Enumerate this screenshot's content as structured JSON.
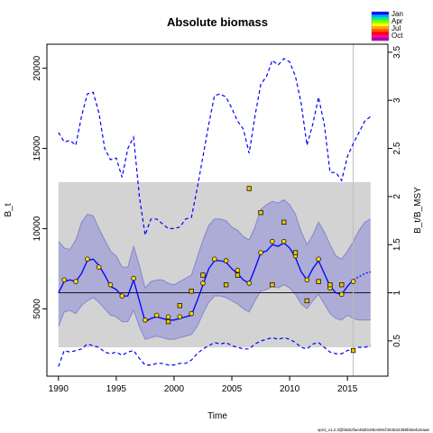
{
  "chart_data": {
    "type": "line",
    "title": "Absolute biomass",
    "xlabel": "Time",
    "ylabel": "B_t",
    "ylabel_right": "B_t/B_MSY",
    "xlim": [
      1989.0,
      2018.5
    ],
    "ylim": [
      800,
      21500
    ],
    "xticks": [
      1990,
      1995,
      2000,
      2005,
      2010,
      2015
    ],
    "yticks": [
      5000,
      10000,
      15000,
      20000
    ],
    "yticks_right": [
      0.5,
      1,
      1.5,
      2,
      2.5,
      3,
      3.5
    ],
    "bmsy": 6000,
    "reference_band": [
      2600,
      12900
    ],
    "band_x": [
      1990,
      2017
    ],
    "vline_x": 2015.5,
    "legend_seasons": [
      "Jan",
      "Apr",
      "Jul",
      "Oct"
    ],
    "legend_colors": [
      "#0000ff",
      "#00aaff",
      "#00ff66",
      "#88ff00",
      "#ffff00",
      "#ffaa00",
      "#ff5500",
      "#ff0000",
      "#ff00aa",
      "#aa00aa"
    ],
    "footer": "spict_v1.2.3@fa5b2fae48d0c88c609cf384634389b55eb2eaae",
    "estimate": {
      "x": [
        1990,
        1990.5,
        1991,
        1991.5,
        1992,
        1992.5,
        1993,
        1993.5,
        1994,
        1994.5,
        1995,
        1995.5,
        1996,
        1996.5,
        1997,
        1997.5,
        1998,
        1998.5,
        1999,
        1999.5,
        2000,
        2000.5,
        2001,
        2001.5,
        2002,
        2002.5,
        2003,
        2003.5,
        2004,
        2004.5,
        2005,
        2005.5,
        2006,
        2006.5,
        2007,
        2007.5,
        2008,
        2008.5,
        2009,
        2009.5,
        2010,
        2010.5,
        2011,
        2011.5,
        2012,
        2012.5,
        2013,
        2013.5,
        2014,
        2014.5,
        2015,
        2015.5
      ],
      "y": [
        6000,
        6700,
        6800,
        6700,
        7200,
        8000,
        8100,
        7700,
        7100,
        6400,
        6200,
        5800,
        5800,
        6800,
        5500,
        4200,
        4400,
        4500,
        4400,
        4300,
        4300,
        4400,
        4500,
        4600,
        5500,
        6500,
        7500,
        8000,
        8000,
        7900,
        7500,
        7200,
        6800,
        6600,
        7500,
        8500,
        8600,
        9000,
        8900,
        9100,
        8800,
        8200,
        7300,
        6800,
        7500,
        8000,
        7200,
        6400,
        6000,
        5900,
        6400,
        6800
      ]
    },
    "forecast": {
      "x": [
        2015.5,
        2016,
        2016.5,
        2017
      ],
      "y": [
        6800,
        7000,
        7200,
        7300
      ]
    },
    "ci_upper": {
      "x": [
        1990,
        1990.5,
        1991,
        1991.5,
        1992,
        1992.5,
        1993,
        1993.5,
        1994,
        1994.5,
        1995,
        1995.5,
        1996,
        1996.5,
        1997,
        1997.5,
        1998,
        1998.5,
        1999,
        1999.5,
        2000,
        2000.5,
        2001,
        2001.5,
        2002,
        2002.5,
        2003,
        2003.5,
        2004,
        2004.5,
        2005,
        2005.5,
        2006,
        2006.5,
        2007,
        2007.5,
        2008,
        2008.5,
        2009,
        2009.5,
        2010,
        2010.5,
        2011,
        2011.5,
        2012,
        2012.5,
        2013,
        2013.5,
        2014,
        2014.5,
        2015,
        2015.5,
        2016,
        2016.5,
        2017
      ],
      "y": [
        9200,
        8800,
        8700,
        9300,
        10400,
        10900,
        10800,
        10000,
        9300,
        8600,
        8300,
        7600,
        7600,
        8900,
        7700,
        6300,
        6700,
        6800,
        6800,
        6600,
        6500,
        6700,
        6900,
        7100,
        8200,
        9300,
        10200,
        10600,
        10600,
        10500,
        10100,
        9900,
        9500,
        9300,
        10100,
        11200,
        11500,
        11700,
        11600,
        11800,
        11500,
        10900,
        9800,
        9000,
        9600,
        10400,
        9800,
        9000,
        8300,
        8100,
        8600,
        9200,
        9900,
        10400,
        10600
      ]
    },
    "ci_lower": {
      "x": [
        1990,
        1990.5,
        1991,
        1991.5,
        1992,
        1992.5,
        1993,
        1993.5,
        1994,
        1994.5,
        1995,
        1995.5,
        1996,
        1996.5,
        1997,
        1997.5,
        1998,
        1998.5,
        1999,
        1999.5,
        2000,
        2000.5,
        2001,
        2001.5,
        2002,
        2002.5,
        2003,
        2003.5,
        2004,
        2004.5,
        2005,
        2005.5,
        2006,
        2006.5,
        2007,
        2007.5,
        2008,
        2008.5,
        2009,
        2009.5,
        2010,
        2010.5,
        2011,
        2011.5,
        2012,
        2012.5,
        2013,
        2013.5,
        2014,
        2014.5,
        2015,
        2015.5,
        2016,
        2016.5,
        2017
      ],
      "y": [
        3900,
        4800,
        4900,
        4700,
        5200,
        5500,
        5700,
        5400,
        5000,
        4600,
        4500,
        4200,
        4200,
        4900,
        3900,
        3100,
        3200,
        3300,
        3200,
        3100,
        3100,
        3200,
        3300,
        3400,
        3900,
        4700,
        5400,
        5800,
        5800,
        5700,
        5500,
        5300,
        5000,
        4800,
        5500,
        6100,
        6200,
        6400,
        6300,
        6500,
        6300,
        5900,
        5300,
        5000,
        5500,
        5900,
        5300,
        4700,
        4400,
        4300,
        4600,
        4400,
        4300,
        4300,
        4300
      ]
    },
    "ci_outer_upper": {
      "x": [
        1990,
        1990.5,
        1991,
        1991.5,
        1992,
        1992.5,
        1993,
        1993.5,
        1994,
        1994.5,
        1995,
        1995.5,
        1996,
        1996.5,
        1997,
        1997.5,
        1998,
        1998.5,
        1999,
        1999.5,
        2000,
        2000.5,
        2001,
        2001.5,
        2002,
        2002.5,
        2003,
        2003.5,
        2004,
        2004.5,
        2005,
        2005.5,
        2006,
        2006.5,
        2007,
        2007.5,
        2008,
        2008.5,
        2009,
        2009.5,
        2010,
        2010.5,
        2011,
        2011.5,
        2012,
        2012.5,
        2013,
        2013.5,
        2014,
        2014.5,
        2015,
        2015.5,
        2016,
        2016.5,
        2017
      ],
      "y": [
        16000,
        15400,
        15500,
        15200,
        17000,
        18400,
        18500,
        17200,
        15000,
        14300,
        14400,
        13200,
        15000,
        15700,
        12000,
        9600,
        10600,
        10600,
        10300,
        10000,
        10000,
        10100,
        10600,
        10700,
        12500,
        14500,
        16500,
        18300,
        18400,
        18200,
        17500,
        16700,
        16200,
        14700,
        17000,
        19000,
        19500,
        20500,
        20200,
        20600,
        20400,
        19500,
        17800,
        15200,
        16500,
        18200,
        16500,
        13500,
        13500,
        13000,
        14500,
        15300,
        16000,
        16700,
        17000
      ]
    },
    "ci_outer_lower": {
      "x": [
        1990,
        1990.5,
        1991,
        1991.5,
        1992,
        1992.5,
        1993,
        1993.5,
        1994,
        1994.5,
        1995,
        1995.5,
        1996,
        1996.5,
        1997,
        1997.5,
        1998,
        1998.5,
        1999,
        1999.5,
        2000,
        2000.5,
        2001,
        2001.5,
        2002,
        2002.5,
        2003,
        2003.5,
        2004,
        2004.5,
        2005,
        2005.5,
        2006,
        2006.5,
        2007,
        2007.5,
        2008,
        2008.5,
        2009,
        2009.5,
        2010,
        2010.5,
        2011,
        2011.5,
        2012,
        2012.5,
        2013,
        2013.5,
        2014,
        2014.5,
        2015,
        2015.5,
        2016,
        2016.5,
        2017
      ],
      "y": [
        1400,
        2400,
        2300,
        2400,
        2500,
        2800,
        2700,
        2600,
        2300,
        2200,
        2300,
        2100,
        2300,
        2400,
        1900,
        1500,
        1500,
        1600,
        1600,
        1500,
        1500,
        1600,
        1600,
        1800,
        2200,
        2500,
        2700,
        2900,
        2800,
        2900,
        2700,
        2600,
        2500,
        2500,
        2800,
        3000,
        3100,
        3200,
        3100,
        3200,
        3100,
        2900,
        2600,
        2500,
        2800,
        2900,
        2600,
        2300,
        2200,
        2200,
        2400,
        2500,
        2600,
        2600,
        2700
      ]
    },
    "observations": {
      "x": [
        1990.5,
        1991.5,
        1992.5,
        1993.5,
        1994.5,
        1995.5,
        1996.5,
        1997.5,
        1998.5,
        1999.5,
        2000.5,
        2001.5,
        2002.5,
        2003.5,
        2004.5,
        2005.5,
        2006.5,
        2007.5,
        2008.5,
        2009.5,
        2010.5,
        2011.5,
        2012.5,
        2013.5,
        2014.5,
        2015.5
      ],
      "y": [
        6800,
        6700,
        8100,
        7600,
        6500,
        5800,
        6900,
        4300,
        4600,
        4500,
        4500,
        4700,
        6600,
        8100,
        8000,
        7400,
        6600,
        8500,
        9200,
        9200,
        8300,
        6800,
        8100,
        6300,
        5900,
        6700
      ],
      "color": "#ffd700"
    },
    "observations_alt": {
      "x": [
        1999.5,
        2000.5,
        2001.5,
        2002.5,
        2004.5,
        2005.5,
        2006.5,
        2007.5,
        2008.5,
        2009.5,
        2010.5,
        2011.5,
        2012.5,
        2013.5,
        2014.5,
        2015.5
      ],
      "y": [
        4200,
        5200,
        6100,
        7100,
        6500,
        7100,
        12500,
        11000,
        6500,
        10400,
        8500,
        5500,
        6700,
        6500,
        6500,
        2400
      ],
      "color": "#e8c300"
    }
  }
}
